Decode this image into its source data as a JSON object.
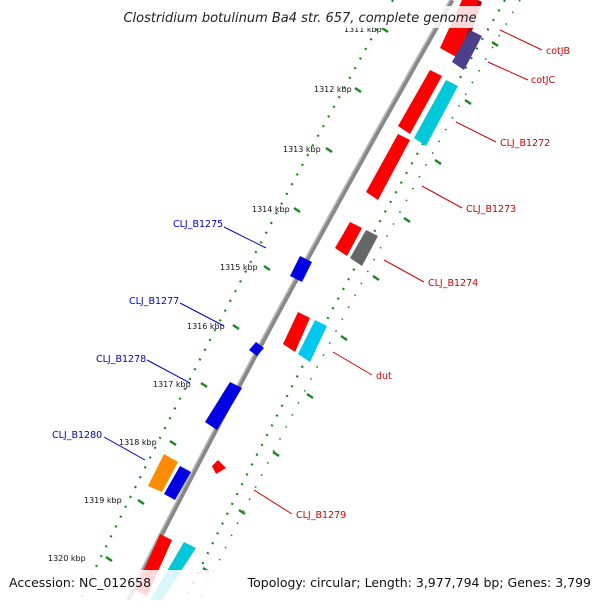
{
  "title": "Clostridium botulinum Ba4 str. 657, complete genome",
  "footer": {
    "accession": "Accession: NC_012658",
    "summary": "Topology: circular; Length: 3,977,794 bp; Genes: 3,799"
  },
  "ticks": [
    "1311 kbp",
    "1312 kbp",
    "1313 kbp",
    "1314 kbp",
    "1315 kbp",
    "1316 kbp",
    "1317 kbp",
    "1318 kbp",
    "1319 kbp",
    "1320 kbp"
  ],
  "gene_labels": {
    "right": [
      "cotJB",
      "cotJC",
      "CLJ_B1272",
      "CLJ_B1273",
      "CLJ_B1274",
      "dut",
      "CLJ_B1279"
    ],
    "left": [
      "CLJ_B1275",
      "CLJ_B1277",
      "CLJ_B1278",
      "CLJ_B1280"
    ]
  },
  "colors": {
    "backbone": "#888888",
    "dots": "#1a8a1a",
    "cds_forward": "#ff0000",
    "cds_cyan": "#00bcd4",
    "cds_blue": "#0000e0",
    "cds_orange": "#ff8c00",
    "cds_gray": "#666666",
    "cds_purple": "#4b3f8c",
    "label_red": "#d00000",
    "label_blue": "#0000c8"
  }
}
